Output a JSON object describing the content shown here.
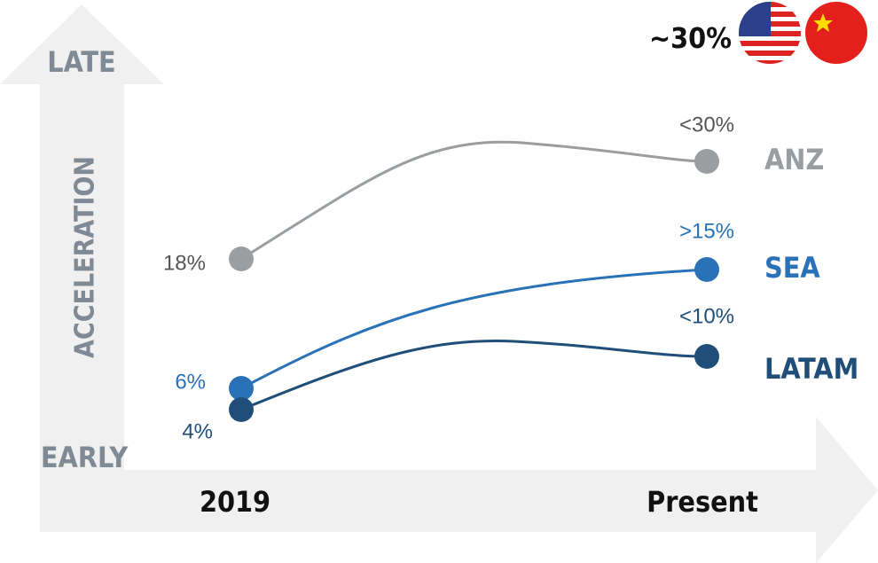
{
  "header": {
    "badge": "~30%"
  },
  "axes": {
    "y_top": "LATE",
    "y_bottom": "EARLY",
    "y_label": "ACCELERATION",
    "x_start": "2019",
    "x_end": "Present"
  },
  "series": [
    {
      "name": "ANZ",
      "start": "18%",
      "end": "<30%"
    },
    {
      "name": "SEA",
      "start": "6%",
      "end": ">15%"
    },
    {
      "name": "LATAM",
      "start": "4%",
      "end": "<10%"
    }
  ]
}
